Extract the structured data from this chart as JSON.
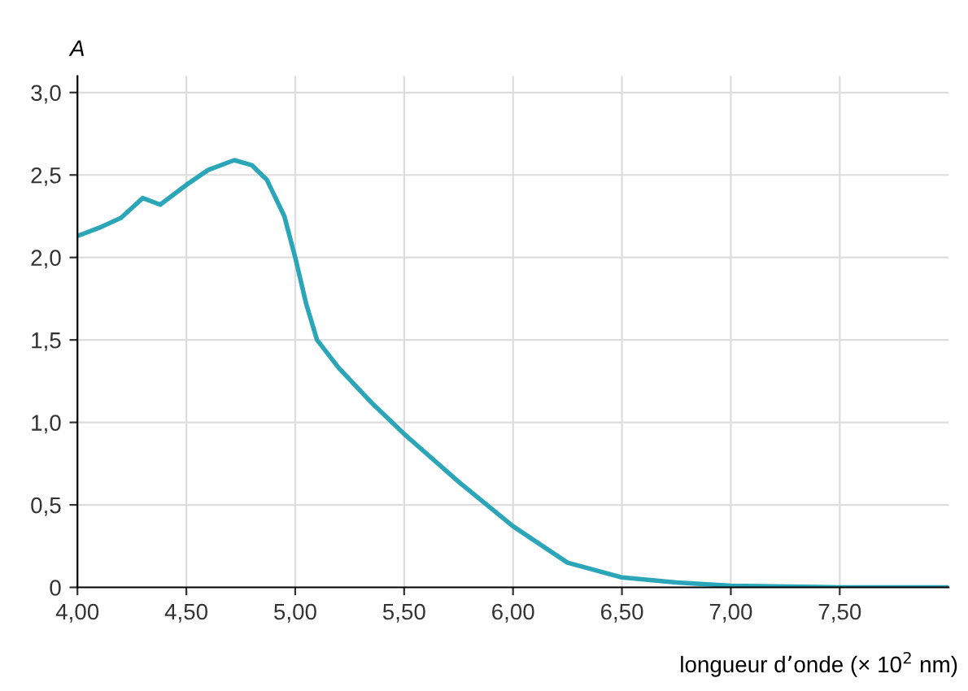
{
  "chart_data": {
    "type": "line",
    "xlabel": "longueur d’onde (× 10$^{2}$ nm)",
    "ylabel": "A",
    "x": [
      4.0,
      4.1,
      4.2,
      4.3,
      4.38,
      4.5,
      4.6,
      4.72,
      4.8,
      4.87,
      4.95,
      5.0,
      5.05,
      5.1,
      5.2,
      5.35,
      5.5,
      5.75,
      6.0,
      6.25,
      6.5,
      6.75,
      7.0,
      7.5,
      8.0
    ],
    "series": [
      {
        "color": "#2aa6b8",
        "values": [
          2.13,
          2.18,
          2.24,
          2.36,
          2.32,
          2.44,
          2.53,
          2.59,
          2.56,
          2.47,
          2.25,
          2.0,
          1.72,
          1.5,
          1.33,
          1.12,
          0.93,
          0.64,
          0.37,
          0.15,
          0.06,
          0.03,
          0.01,
          0.0,
          0.0
        ]
      }
    ],
    "xlim": [
      4.0,
      8.0
    ],
    "ylim": [
      0,
      3.1
    ],
    "xticks": [
      {
        "value": 4.0,
        "label": "4,00"
      },
      {
        "value": 4.5,
        "label": "4,50"
      },
      {
        "value": 5.0,
        "label": "5,00"
      },
      {
        "value": 5.5,
        "label": "5,50"
      },
      {
        "value": 6.0,
        "label": "6,00"
      },
      {
        "value": 6.5,
        "label": "6,50"
      },
      {
        "value": 7.0,
        "label": "7,00"
      },
      {
        "value": 7.5,
        "label": "7,50"
      }
    ],
    "yticks": [
      0,
      {
        "value": 0.5,
        "label": "0,5"
      },
      {
        "value": 1.0,
        "label": "1,0"
      },
      {
        "value": 1.5,
        "label": "1,5"
      },
      {
        "value": 2.0,
        "label": "2,0"
      },
      {
        "value": 2.5,
        "label": "2,5"
      },
      {
        "value": 3.0,
        "label": "3,0"
      }
    ],
    "grid": true,
    "marker": "none",
    "line_style": "solid"
  }
}
